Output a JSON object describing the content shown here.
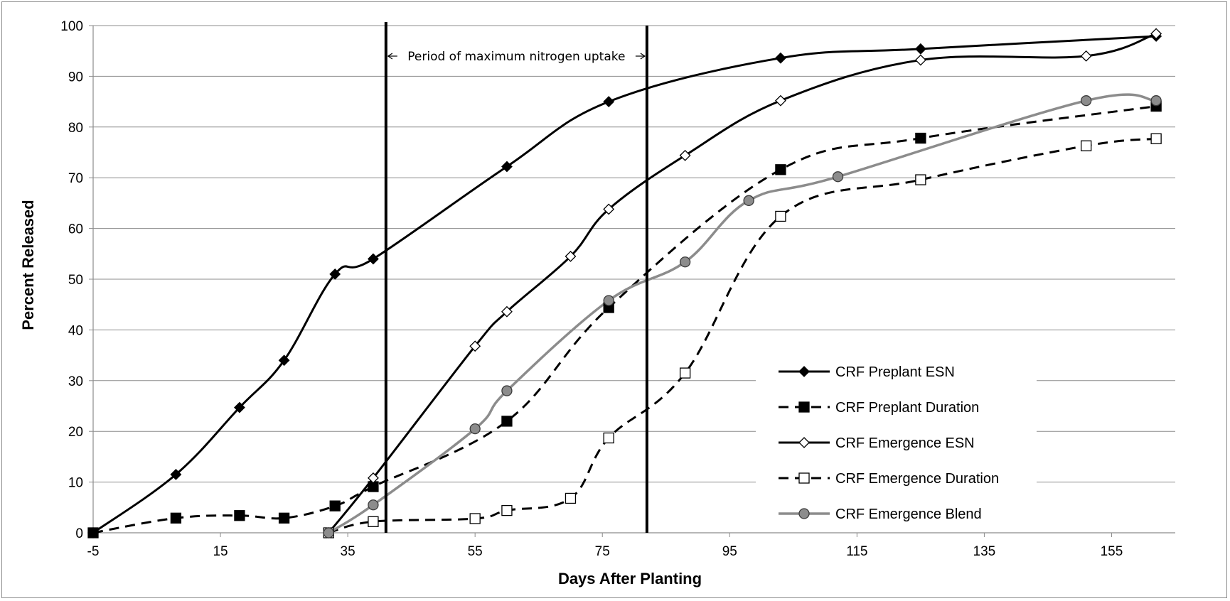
{
  "chart_data": {
    "type": "line",
    "title": "",
    "xlabel": "Days After Planting",
    "ylabel": "Percent Released",
    "xlim": [
      -5,
      165
    ],
    "ylim": [
      0,
      100
    ],
    "xticks": [
      -5,
      15,
      35,
      55,
      75,
      95,
      115,
      135,
      155
    ],
    "yticks": [
      0,
      10,
      20,
      30,
      40,
      50,
      60,
      70,
      80,
      90,
      100
    ],
    "grid": "horizontal",
    "legend_position": "bottom-right",
    "annotation": {
      "text": "Period of maximum nitrogen uptake",
      "x_start": 41,
      "x_end": 82
    },
    "series": [
      {
        "name": "CRF Preplant ESN",
        "style": "solid",
        "color": "#000000",
        "marker": "diamond-filled",
        "points": [
          [
            -5,
            0
          ],
          [
            8,
            11.5
          ],
          [
            18,
            24.7
          ],
          [
            25,
            34
          ],
          [
            33,
            51
          ],
          [
            39,
            54
          ],
          [
            60,
            72.2
          ],
          [
            76,
            85
          ],
          [
            103,
            93.6
          ],
          [
            125,
            95.4
          ],
          [
            162,
            97.9
          ]
        ]
      },
      {
        "name": "CRF Preplant Duration",
        "style": "dashed",
        "color": "#000000",
        "marker": "square-filled",
        "points": [
          [
            -5,
            0
          ],
          [
            8,
            2.9
          ],
          [
            18,
            3.4
          ],
          [
            25,
            2.9
          ],
          [
            33,
            5.3
          ],
          [
            39,
            9.1
          ],
          [
            60,
            22
          ],
          [
            76,
            44.4
          ],
          [
            103,
            71.6
          ],
          [
            125,
            77.8
          ],
          [
            162,
            84.1
          ]
        ]
      },
      {
        "name": "CRF Emergence ESN",
        "style": "solid",
        "color": "#000000",
        "marker": "diamond-open",
        "points": [
          [
            32,
            0
          ],
          [
            39,
            10.8
          ],
          [
            55,
            36.8
          ],
          [
            60,
            43.6
          ],
          [
            70,
            54.5
          ],
          [
            76,
            63.8
          ],
          [
            88,
            74.4
          ],
          [
            103,
            85.2
          ],
          [
            125,
            93.2
          ],
          [
            151,
            94
          ],
          [
            162,
            98.4
          ]
        ]
      },
      {
        "name": "CRF Emergence Duration",
        "style": "dashed",
        "color": "#000000",
        "marker": "square-open",
        "points": [
          [
            32,
            0
          ],
          [
            39,
            2.2
          ],
          [
            55,
            2.8
          ],
          [
            60,
            4.4
          ],
          [
            70,
            6.8
          ],
          [
            76,
            18.7
          ],
          [
            88,
            31.5
          ],
          [
            103,
            62.4
          ],
          [
            125,
            69.6
          ],
          [
            151,
            76.3
          ],
          [
            162,
            77.7
          ]
        ]
      },
      {
        "name": "CRF Emergence Blend",
        "style": "solid",
        "color": "#8c8c8c",
        "marker": "circle-gray",
        "points": [
          [
            32,
            0
          ],
          [
            39,
            5.5
          ],
          [
            55,
            20.5
          ],
          [
            60,
            28
          ],
          [
            76,
            45.8
          ],
          [
            88,
            53.4
          ],
          [
            98,
            65.5
          ],
          [
            112,
            70.2
          ],
          [
            151,
            85.2
          ],
          [
            162,
            85.2
          ]
        ]
      }
    ]
  }
}
